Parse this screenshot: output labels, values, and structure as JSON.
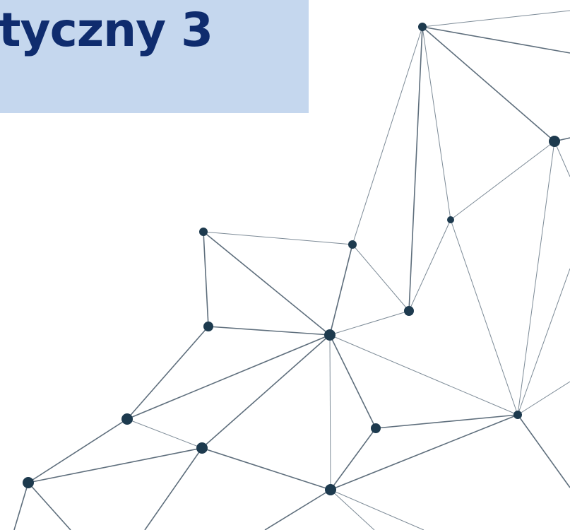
{
  "title": "tyczny 3"
}
